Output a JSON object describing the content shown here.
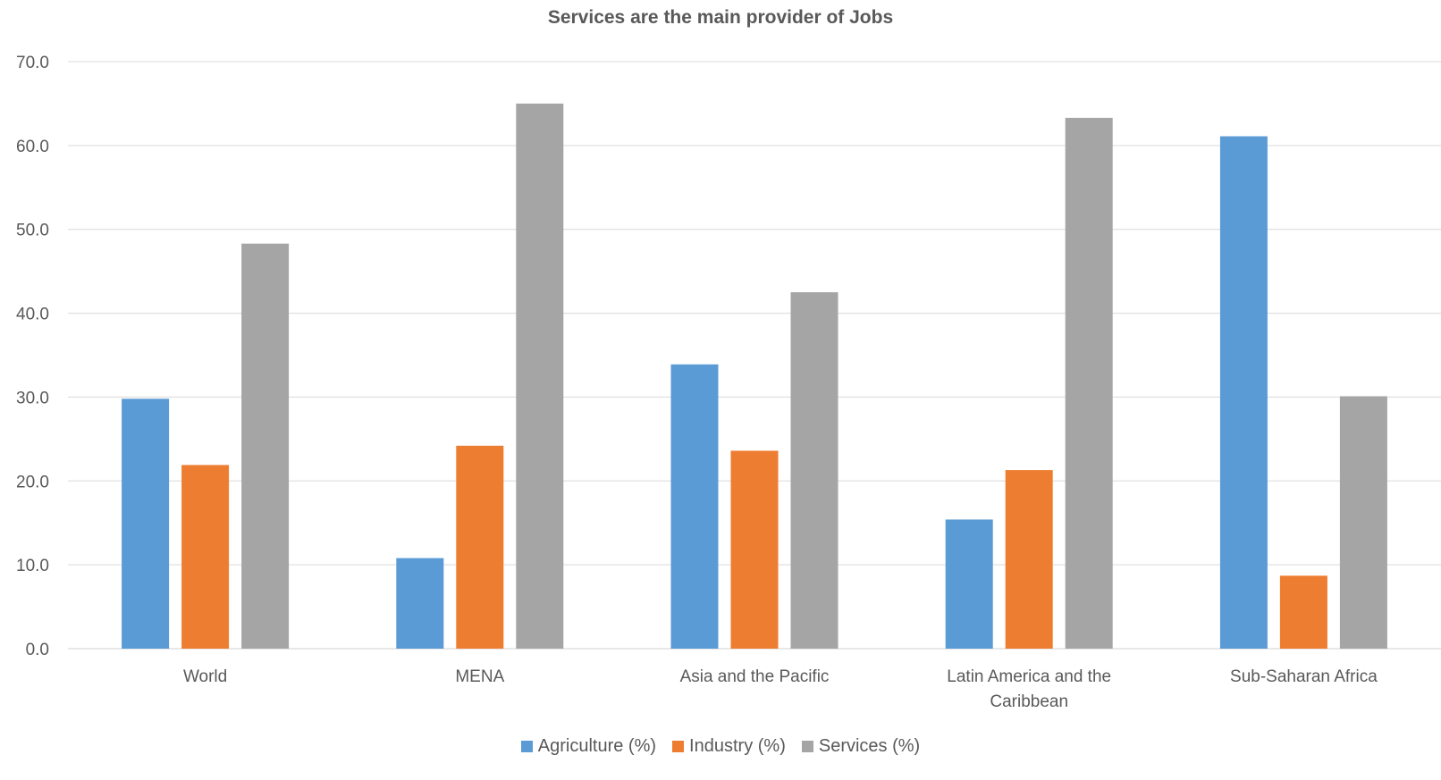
{
  "chart_data": {
    "type": "bar",
    "title": "Services are the main provider of Jobs",
    "xlabel": "",
    "ylabel": "",
    "ylim": [
      0,
      70
    ],
    "yticks": [
      "0.0",
      "10.0",
      "20.0",
      "30.0",
      "40.0",
      "50.0",
      "60.0",
      "70.0"
    ],
    "grid": true,
    "legend_position": "bottom",
    "categories": [
      [
        "World"
      ],
      [
        "MENA"
      ],
      [
        "Asia and the Pacific"
      ],
      [
        "Latin America and the",
        "Caribbean"
      ],
      [
        "Sub-Saharan Africa"
      ]
    ],
    "series": [
      {
        "name": "Agriculture (%)",
        "color": "#5B9BD5",
        "values": [
          29.8,
          10.8,
          33.9,
          15.4,
          61.1
        ]
      },
      {
        "name": "Industry (%)",
        "color": "#ED7D31",
        "values": [
          21.9,
          24.2,
          23.6,
          21.3,
          8.7
        ]
      },
      {
        "name": "Services (%)",
        "color": "#A5A5A5",
        "values": [
          48.3,
          65.0,
          42.5,
          63.3,
          30.1
        ]
      }
    ]
  }
}
